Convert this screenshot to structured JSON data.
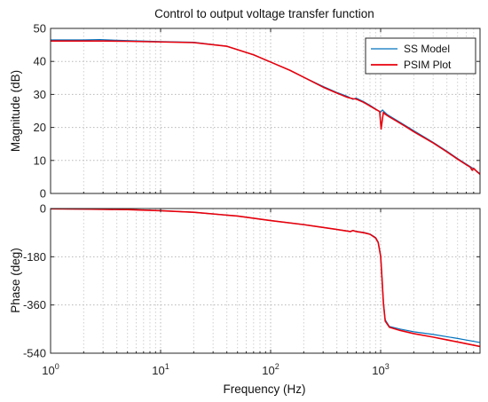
{
  "figure_title": "Control to output voltage transfer function",
  "xlabel": "Frequency  (Hz)",
  "chart_data": [
    {
      "type": "line",
      "title": "Control to output voltage transfer function",
      "ylabel": "Magnitude (dB)",
      "xscale": "log",
      "xlim": [
        1,
        8000
      ],
      "ylim": [
        0,
        50
      ],
      "yticks": [
        0,
        10,
        20,
        30,
        40,
        50
      ],
      "grid": "dotted",
      "legend": {
        "location": "top-right",
        "entries": [
          "SS Model",
          "PSIM Plot"
        ]
      },
      "series": [
        {
          "name": "SS Model",
          "color": "#0072bd",
          "x": [
            1,
            2,
            2.8,
            5,
            10,
            20,
            40,
            70,
            100,
            150,
            200,
            300,
            400,
            500,
            560,
            600,
            700,
            800,
            900,
            1000,
            1040,
            1080,
            1150,
            1300,
            1600,
            2000,
            3000,
            4000,
            5000,
            6000,
            7000,
            8000
          ],
          "values": [
            46.5,
            46.5,
            46.6,
            46.3,
            46.0,
            45.8,
            44.6,
            42.0,
            39.8,
            37.3,
            35.2,
            32.4,
            30.6,
            29.4,
            28.5,
            28.9,
            27.8,
            26.7,
            25.6,
            24.6,
            25.3,
            24.7,
            23.9,
            22.8,
            21.0,
            19.0,
            15.5,
            12.8,
            10.6,
            8.9,
            7.5,
            6.0
          ]
        },
        {
          "name": "PSIM Plot",
          "color": "#e8000b",
          "x": [
            1,
            2,
            3,
            5,
            10,
            20,
            40,
            70,
            100,
            150,
            200,
            300,
            400,
            500,
            560,
            600,
            700,
            800,
            900,
            980,
            1010,
            1040,
            1060,
            1100,
            1200,
            1400,
            1700,
            2000,
            3000,
            4000,
            5000,
            6000,
            6500,
            6800,
            7000,
            7500,
            8000
          ],
          "values": [
            46.2,
            46.2,
            46.2,
            46.1,
            45.9,
            45.7,
            44.6,
            42.0,
            39.8,
            37.3,
            35.2,
            32.2,
            30.4,
            29.1,
            28.7,
            28.6,
            27.6,
            26.5,
            25.5,
            24.8,
            19.5,
            22.8,
            24.6,
            24.0,
            23.2,
            21.9,
            20.2,
            18.7,
            15.3,
            12.6,
            10.4,
            8.7,
            8.0,
            7.0,
            7.6,
            6.6,
            5.8
          ]
        }
      ]
    },
    {
      "type": "line",
      "ylabel": "Phase (deg)",
      "xscale": "log",
      "xlim": [
        1,
        8000
      ],
      "ylim": [
        -540,
        0
      ],
      "yticks": [
        -540,
        -360,
        -180,
        0
      ],
      "grid": "dotted",
      "series": [
        {
          "name": "SS Model",
          "color": "#0072bd",
          "x": [
            1,
            2,
            5,
            10,
            20,
            50,
            100,
            200,
            400,
            530,
            560,
            600,
            700,
            800,
            900,
            950,
            1000,
            1030,
            1060,
            1100,
            1200,
            1500,
            2000,
            3000,
            5000,
            8000
          ],
          "values": [
            -1,
            -2,
            -4,
            -8,
            -14,
            -28,
            -45,
            -60,
            -78,
            -85,
            -82,
            -85,
            -89,
            -95,
            -108,
            -125,
            -175,
            -260,
            -350,
            -415,
            -440,
            -450,
            -460,
            -470,
            -485,
            -500
          ]
        },
        {
          "name": "PSIM Plot",
          "color": "#e8000b",
          "x": [
            1,
            2,
            5,
            10,
            20,
            50,
            100,
            200,
            400,
            530,
            560,
            600,
            700,
            800,
            900,
            950,
            1000,
            1030,
            1060,
            1100,
            1200,
            1500,
            2000,
            3000,
            5000,
            8000
          ],
          "values": [
            -1,
            -2,
            -4,
            -8,
            -14,
            -28,
            -45,
            -60,
            -78,
            -86,
            -82,
            -86,
            -90,
            -96,
            -110,
            -127,
            -178,
            -265,
            -355,
            -420,
            -443,
            -455,
            -467,
            -480,
            -498,
            -515
          ]
        }
      ]
    }
  ]
}
